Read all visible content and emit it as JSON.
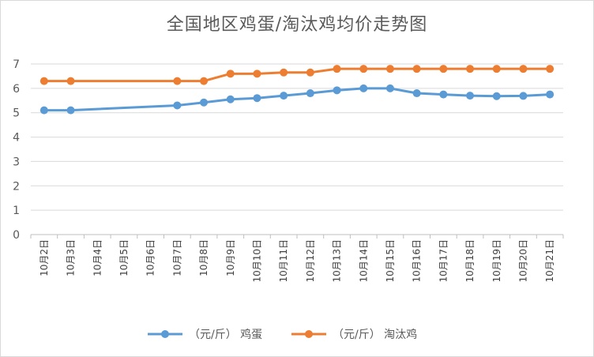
{
  "chart_data": {
    "type": "line",
    "title": "全国地区鸡蛋/淘汰鸡均价走势图",
    "categories": [
      "10月2日",
      "10月3日",
      "10月4日",
      "10月5日",
      "10月6日",
      "10月7日",
      "10月8日",
      "10月9日",
      "10月10日",
      "10月11日",
      "10月12日",
      "10月13日",
      "10月14日",
      "10月15日",
      "10月16日",
      "10月17日",
      "10月18日",
      "10月19日",
      "10月20日",
      "10月21日"
    ],
    "yticks": [
      0,
      1,
      2,
      3,
      4,
      5,
      6,
      7
    ],
    "ylim": [
      0,
      7
    ],
    "grid": true,
    "legend_position": "bottom",
    "series": [
      {
        "name": "（元/斤） 鸡蛋",
        "color": "#5b9bd5",
        "values": [
          5.1,
          5.1,
          null,
          null,
          null,
          5.3,
          5.42,
          5.55,
          5.6,
          5.7,
          5.8,
          5.92,
          6.0,
          6.0,
          5.8,
          5.75,
          5.7,
          5.68,
          5.69,
          5.75
        ]
      },
      {
        "name": "（元/斤） 淘汰鸡",
        "color": "#ed7d31",
        "values": [
          6.3,
          6.3,
          null,
          null,
          null,
          6.3,
          6.3,
          6.6,
          6.6,
          6.65,
          6.65,
          6.8,
          6.8,
          6.8,
          6.8,
          6.8,
          6.8,
          6.8,
          6.8,
          6.8
        ]
      }
    ]
  }
}
